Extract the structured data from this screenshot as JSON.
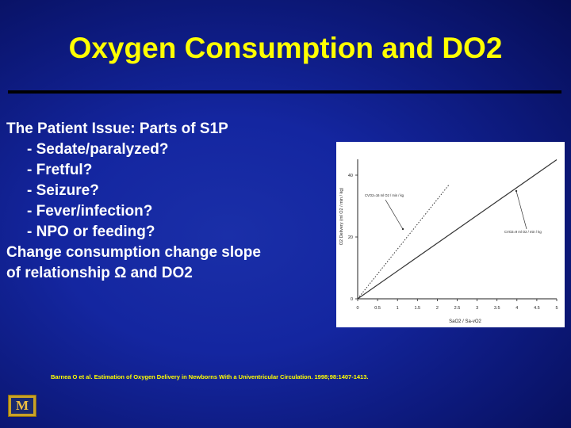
{
  "slide": {
    "title": "Oxygen Consumption and DO2",
    "body_lines": [
      {
        "text": "The Patient Issue: Parts of S1P",
        "indent": false
      },
      {
        "text": "- Sedate/paralyzed?",
        "indent": true
      },
      {
        "text": "- Fretful?",
        "indent": true
      },
      {
        "text": "- Seizure?",
        "indent": true
      },
      {
        "text": "- Fever/infection?",
        "indent": true
      },
      {
        "text": "- NPO or feeding?",
        "indent": true
      },
      {
        "text": "Change consumption change slope",
        "indent": false
      },
      {
        "text": "of relationship Ω and DO2",
        "indent": false
      }
    ],
    "citation": "Barnea O et al. Estimation of Oxygen Delivery in Newborns With a Univentricular  Circulation. 1998;98:1407-1413.",
    "logo_letter": "M",
    "colors": {
      "title": "#ffff00",
      "body_text": "#ffffff",
      "citation": "#ffff00",
      "background": "#1426a0"
    }
  },
  "chart_data": {
    "type": "line",
    "xlabel": "SaO2 / Sa-vO2",
    "ylabel": "O2 Delivery (ml O2 / min / kg)",
    "x_ticks": [
      "0",
      "0.5",
      "1",
      "1.5",
      "2",
      "2.5",
      "3",
      "3.5",
      "4",
      "4.5",
      "5"
    ],
    "y_ticks": [
      "0",
      "20",
      "40"
    ],
    "xlim": [
      0,
      5
    ],
    "ylim": [
      0,
      40
    ],
    "series": [
      {
        "name": "CVO2=16 ml O2 / min / kg",
        "style": "dotted",
        "x": [
          0,
          2.3
        ],
        "y": [
          0,
          37
        ]
      },
      {
        "name": "CVO2=9 ml O2 / min / kg",
        "style": "solid",
        "x": [
          0,
          5
        ],
        "y": [
          0,
          45
        ]
      }
    ],
    "annotations": [
      "CVO2=16 ml O2 / min / kg",
      "CVO2=9 ml O2 / min / kg"
    ]
  }
}
